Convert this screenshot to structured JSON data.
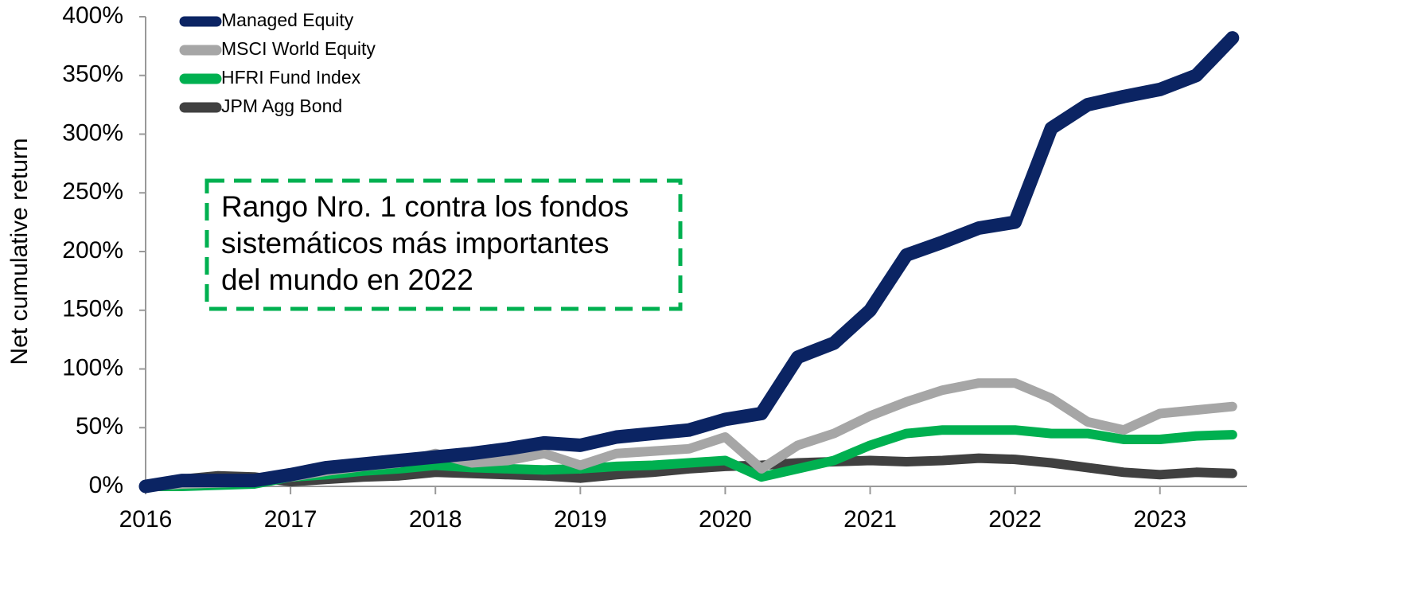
{
  "chart_data": {
    "type": "line",
    "ylabel": "Net cumulative return",
    "annotation": [
      "Rango Nro. 1 contra los fondos",
      "sistemáticos más importantes",
      "del mundo en 2022"
    ],
    "x": [
      2016,
      2016.25,
      2016.5,
      2016.75,
      2017,
      2017.25,
      2017.5,
      2017.75,
      2018,
      2018.25,
      2018.5,
      2018.75,
      2019,
      2019.25,
      2019.5,
      2019.75,
      2020,
      2020.25,
      2020.5,
      2020.75,
      2021,
      2021.25,
      2021.5,
      2021.75,
      2022,
      2022.25,
      2022.5,
      2022.75,
      2023,
      2023.25,
      2023.5
    ],
    "series": [
      {
        "name": "Managed Equity",
        "color": "#0b2463",
        "values": [
          0,
          5,
          5,
          5,
          10,
          16,
          19,
          22,
          25,
          28,
          32,
          37,
          35,
          42,
          45,
          48,
          57,
          62,
          110,
          122,
          150,
          197,
          208,
          220,
          225,
          305,
          325,
          332,
          338,
          350,
          382
        ]
      },
      {
        "name": "MSCI World Equity",
        "color": "#a6a6a6",
        "values": [
          0,
          2,
          3,
          4,
          8,
          13,
          17,
          20,
          28,
          20,
          22,
          28,
          18,
          28,
          30,
          32,
          42,
          15,
          35,
          45,
          60,
          72,
          82,
          88,
          88,
          75,
          55,
          48,
          62,
          65,
          68
        ]
      },
      {
        "name": "HFRI Fund Index",
        "color": "#00b050",
        "values": [
          0,
          0,
          1,
          2,
          8,
          10,
          13,
          15,
          18,
          16,
          15,
          14,
          15,
          17,
          18,
          20,
          22,
          8,
          15,
          22,
          35,
          45,
          48,
          48,
          48,
          45,
          45,
          40,
          40,
          43,
          44
        ]
      },
      {
        "name": "JPM Agg Bond",
        "color": "#404040",
        "values": [
          0,
          6,
          9,
          8,
          4,
          6,
          8,
          9,
          12,
          11,
          10,
          9,
          7,
          10,
          12,
          15,
          17,
          18,
          20,
          21,
          22,
          21,
          22,
          24,
          23,
          20,
          16,
          12,
          10,
          12,
          11
        ]
      }
    ],
    "xlim": [
      2016,
      2023.6
    ],
    "xticks": [
      2016,
      2017,
      2018,
      2019,
      2020,
      2021,
      2022,
      2023
    ],
    "ylim": [
      0,
      400
    ],
    "yticks": [
      {
        "value": 0,
        "label": "0%"
      },
      {
        "value": 50,
        "label": "50%"
      },
      {
        "value": 100,
        "label": "100%"
      },
      {
        "value": 150,
        "label": "150%"
      },
      {
        "value": 200,
        "label": "200%"
      },
      {
        "value": 250,
        "label": "250%"
      },
      {
        "value": 300,
        "label": "300%"
      },
      {
        "value": 350,
        "label": "350%"
      },
      {
        "value": 400,
        "label": "400%"
      }
    ],
    "grid": false,
    "legend": "upper left"
  }
}
